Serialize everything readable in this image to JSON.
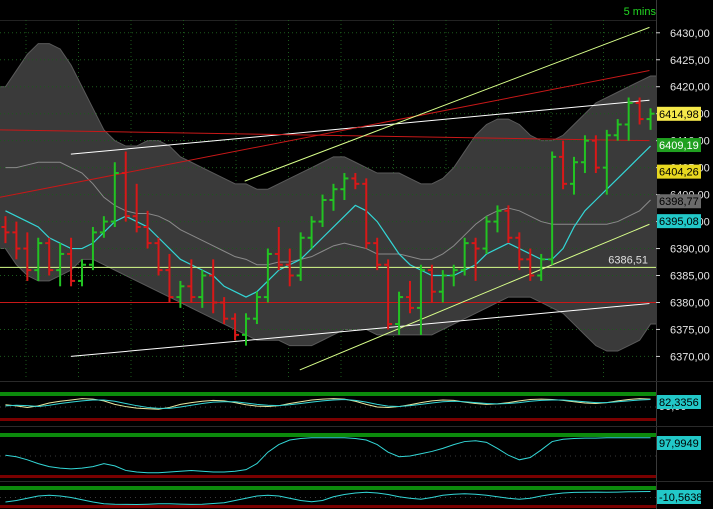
{
  "timeframe": "5 mins",
  "colors": {
    "background": "#000000",
    "grid": "#1c5a1c",
    "up_bar": "#22c322",
    "down_bar": "#d81818",
    "band_fill": "#3a3a3a",
    "band_edge": "#5a5a5a",
    "cyan_line": "#33d6d6",
    "level_line": "#d8ff8a",
    "red_line": "#c81818",
    "white_line": "#ffffff",
    "panel_green": "#0c8a0c",
    "panel_red": "#7a0000"
  },
  "chart_data": [
    {
      "type": "candlestick",
      "title": "",
      "ylim": [
        6366,
        6432
      ],
      "y_ticks": [
        "6430,00",
        "6425,00",
        "6420,00",
        "6415,00",
        "6410,00",
        "6405,00",
        "6400,00",
        "6395,00",
        "6390,00",
        "6385,00",
        "6380,00",
        "6375,00",
        "6370,00"
      ],
      "y_tick_values": [
        6430,
        6425,
        6420,
        6415,
        6410,
        6405,
        6400,
        6395,
        6390,
        6385,
        6380,
        6375,
        6370
      ],
      "grid": true,
      "bars_ohlc": [
        [
          6394,
          6396,
          6391,
          6393
        ],
        [
          6393,
          6395,
          6388,
          6390
        ],
        [
          6390,
          6393,
          6384,
          6386
        ],
        [
          6386,
          6392,
          6384,
          6391
        ],
        [
          6391,
          6392,
          6385,
          6386
        ],
        [
          6386,
          6391,
          6383,
          6389
        ],
        [
          6389,
          6392,
          6383,
          6384
        ],
        [
          6384,
          6388,
          6383,
          6387
        ],
        [
          6387,
          6394,
          6386,
          6393
        ],
        [
          6393,
          6396,
          6392,
          6395
        ],
        [
          6395,
          6406,
          6394,
          6404
        ],
        [
          6404,
          6408,
          6395,
          6396
        ],
        [
          6396,
          6402,
          6393,
          6394
        ],
        [
          6394,
          6397,
          6390,
          6391
        ],
        [
          6391,
          6392,
          6385,
          6386
        ],
        [
          6386,
          6389,
          6380,
          6381
        ],
        [
          6381,
          6384,
          6379,
          6383
        ],
        [
          6383,
          6388,
          6380,
          6381
        ],
        [
          6381,
          6386,
          6379,
          6385
        ],
        [
          6385,
          6388,
          6378,
          6380
        ],
        [
          6380,
          6381,
          6376,
          6377
        ],
        [
          6377,
          6378,
          6373,
          6374
        ],
        [
          6374,
          6378,
          6372,
          6377
        ],
        [
          6377,
          6382,
          6376,
          6381
        ],
        [
          6381,
          6390,
          6380,
          6389
        ],
        [
          6389,
          6394,
          6386,
          6387
        ],
        [
          6387,
          6390,
          6383,
          6385
        ],
        [
          6385,
          6393,
          6384,
          6392
        ],
        [
          6392,
          6396,
          6390,
          6395
        ],
        [
          6395,
          6400,
          6394,
          6399
        ],
        [
          6399,
          6402,
          6397,
          6401
        ],
        [
          6401,
          6404,
          6399,
          6403
        ],
        [
          6403,
          6404,
          6401,
          6402
        ],
        [
          6402,
          6403,
          6390,
          6391
        ],
        [
          6391,
          6392,
          6386,
          6387
        ],
        [
          6387,
          6388,
          6375,
          6376
        ],
        [
          6376,
          6382,
          6374,
          6381
        ],
        [
          6381,
          6384,
          6378,
          6379
        ],
        [
          6379,
          6387,
          6374,
          6386
        ],
        [
          6386,
          6387,
          6380,
          6382
        ],
        [
          6382,
          6386,
          6380,
          6385
        ],
        [
          6385,
          6387,
          6383,
          6386
        ],
        [
          6386,
          6392,
          6385,
          6391
        ],
        [
          6391,
          6392,
          6384,
          6390
        ],
        [
          6390,
          6396,
          6389,
          6395
        ],
        [
          6395,
          6398,
          6393,
          6397
        ],
        [
          6397,
          6398,
          6391,
          6392
        ],
        [
          6392,
          6393,
          6386,
          6388
        ],
        [
          6388,
          6390,
          6384,
          6385
        ],
        [
          6385,
          6389,
          6384,
          6388
        ],
        [
          6388,
          6408,
          6387,
          6407
        ],
        [
          6407,
          6410,
          6401,
          6402
        ],
        [
          6402,
          6407,
          6400,
          6406
        ],
        [
          6406,
          6411,
          6404,
          6410
        ],
        [
          6410,
          6411,
          6404,
          6405
        ],
        [
          6405,
          6412,
          6400,
          6411
        ],
        [
          6411,
          6414,
          6410,
          6413
        ],
        [
          6413,
          6418,
          6410,
          6417
        ],
        [
          6417,
          6418,
          6413,
          6414
        ],
        [
          6414,
          6416,
          6412,
          6415
        ]
      ],
      "moving_average_cyan": [
        6397,
        6396,
        6395,
        6394,
        6392,
        6391,
        6390,
        6390,
        6391,
        6393,
        6395,
        6396,
        6395,
        6394,
        6392,
        6390,
        6388,
        6387,
        6386,
        6385,
        6383,
        6382,
        6381,
        6382,
        6384,
        6386,
        6387,
        6388,
        6390,
        6392,
        6394,
        6396,
        6398,
        6397,
        6395,
        6392,
        6389,
        6387,
        6386,
        6385,
        6385,
        6385,
        6386,
        6387,
        6389,
        6390,
        6391,
        6390,
        6389,
        6388,
        6388,
        6390,
        6394,
        6397,
        6399,
        6401,
        6403,
        6405,
        6407,
        6409
      ],
      "band_upper": [
        6420,
        6423,
        6426,
        6428,
        6428,
        6427,
        6424,
        6420,
        6416,
        6412,
        6410,
        6409,
        6409,
        6410,
        6410,
        6409,
        6407,
        6406,
        6405,
        6404,
        6403,
        6402,
        6402,
        6401,
        6401,
        6402,
        6403,
        6404,
        6405,
        6406,
        6407,
        6407,
        6406,
        6405,
        6404,
        6404,
        6404,
        6403,
        6402,
        6402,
        6403,
        6405,
        6408,
        6411,
        6413,
        6414,
        6414,
        6413,
        6411,
        6410,
        6410,
        6411,
        6413,
        6415,
        6417,
        6418,
        6419,
        6420,
        6421,
        6422
      ],
      "band_lower": [
        6390,
        6387,
        6385,
        6384,
        6384,
        6385,
        6386,
        6388,
        6388,
        6387,
        6386,
        6385,
        6384,
        6383,
        6382,
        6381,
        6380,
        6379,
        6378,
        6377,
        6376,
        6375,
        6374,
        6373,
        6373,
        6373,
        6372,
        6372,
        6372,
        6373,
        6374,
        6375,
        6375,
        6375,
        6374,
        6374,
        6374,
        6374,
        6374,
        6374,
        6375,
        6376,
        6377,
        6378,
        6379,
        6380,
        6381,
        6381,
        6381,
        6380,
        6379,
        6378,
        6376,
        6374,
        6372,
        6371,
        6371,
        6372,
        6373,
        6376
      ],
      "levels": [
        {
          "label": "6386,51",
          "value": 6386.51,
          "line": "level"
        },
        {
          "value": 6380.0,
          "line": "red"
        }
      ],
      "trendlines": [
        {
          "color": "white",
          "from": [
            0.108,
            6407.5
          ],
          "to": [
            0.99,
            6417.5
          ]
        },
        {
          "color": "white",
          "from": [
            0.108,
            6370.0
          ],
          "to": [
            0.99,
            6379.8
          ]
        },
        {
          "color": "red",
          "from": [
            0.0,
            6399.5
          ],
          "to": [
            0.99,
            6423.0
          ]
        },
        {
          "color": "red",
          "from": [
            0.0,
            6412.0
          ],
          "to": [
            0.99,
            6410.0
          ]
        },
        {
          "color": "level",
          "from": [
            0.373,
            6402.5
          ],
          "to": [
            0.99,
            6431.0
          ]
        },
        {
          "color": "level",
          "from": [
            0.457,
            6367.5
          ],
          "to": [
            0.99,
            6394.5
          ]
        }
      ],
      "price_tags": [
        {
          "text": "6414,98",
          "value": 6414.98,
          "bg": "#f5e84a",
          "fg": "#000000"
        },
        {
          "text": "6409,19",
          "value": 6409.19,
          "bg": "#20a020",
          "fg": "#ffffff"
        },
        {
          "text": "6404,26",
          "value": 6404.26,
          "bg": "#e8d820",
          "fg": "#000000"
        },
        {
          "text": "6398,77",
          "value": 6398.77,
          "bg": "#6a6a6a",
          "fg": "#000000"
        },
        {
          "text": "6395,08",
          "value": 6395.08,
          "bg": "#22c8c8",
          "fg": "#000000"
        }
      ]
    },
    {
      "type": "line",
      "title": "",
      "value_tag": "82,3356",
      "ylim": [
        0,
        100
      ],
      "hidden_tick": "90,00",
      "series": [
        {
          "values": [
            60,
            55,
            48,
            55,
            68,
            76,
            82,
            88,
            86,
            78,
            62,
            52,
            45,
            42,
            40,
            48,
            62,
            70,
            76,
            80,
            78,
            70,
            60,
            54,
            52,
            56,
            66,
            74,
            82,
            86,
            88,
            86,
            76,
            62,
            50,
            48,
            52,
            60,
            70,
            78,
            82,
            80,
            72,
            66,
            62,
            64,
            70,
            78,
            84,
            86,
            84,
            80,
            74,
            68,
            66,
            70,
            78,
            84,
            88,
            86
          ]
        },
        {
          "values": [
            55,
            58,
            56,
            52,
            58,
            66,
            72,
            78,
            82,
            82,
            76,
            66,
            56,
            48,
            44,
            44,
            50,
            58,
            66,
            72,
            74,
            74,
            68,
            62,
            58,
            56,
            60,
            66,
            72,
            78,
            82,
            84,
            80,
            72,
            62,
            54,
            52,
            56,
            62,
            68,
            74,
            76,
            74,
            70,
            66,
            64,
            66,
            70,
            76,
            80,
            82,
            82,
            78,
            74,
            70,
            70,
            74,
            78,
            82,
            84
          ]
        }
      ]
    },
    {
      "type": "line",
      "title": "",
      "value_tag": "97,9949",
      "ylim": [
        0,
        100
      ],
      "series": [
        {
          "values": [
            52,
            48,
            40,
            30,
            22,
            18,
            16,
            18,
            22,
            30,
            24,
            12,
            8,
            6,
            6,
            8,
            10,
            12,
            10,
            8,
            8,
            10,
            14,
            30,
            60,
            80,
            92,
            96,
            98,
            98,
            98,
            98,
            96,
            92,
            80,
            60,
            48,
            50,
            56,
            62,
            70,
            80,
            88,
            90,
            86,
            70,
            52,
            40,
            46,
            66,
            88,
            94,
            96,
            97,
            97,
            98,
            98,
            98,
            98,
            98
          ]
        }
      ]
    },
    {
      "type": "line",
      "title": "",
      "value_tag": "-10,5638",
      "ylim": [
        -100,
        0
      ],
      "series": [
        {
          "values": [
            -80,
            -70,
            -55,
            -40,
            -35,
            -40,
            -50,
            -65,
            -80,
            -92,
            -95,
            -96,
            -97,
            -95,
            -92,
            -92,
            -94,
            -96,
            -95,
            -90,
            -85,
            -70,
            -55,
            -40,
            -35,
            -40,
            -55,
            -70,
            -78,
            -70,
            -45,
            -30,
            -20,
            -15,
            -20,
            -30,
            -45,
            -55,
            -62,
            -50,
            -35,
            -28,
            -25,
            -28,
            -35,
            -45,
            -55,
            -62,
            -55,
            -40,
            -28,
            -20,
            -16,
            -15,
            -14,
            -15,
            -14,
            -12,
            -11,
            -10
          ]
        }
      ]
    }
  ]
}
